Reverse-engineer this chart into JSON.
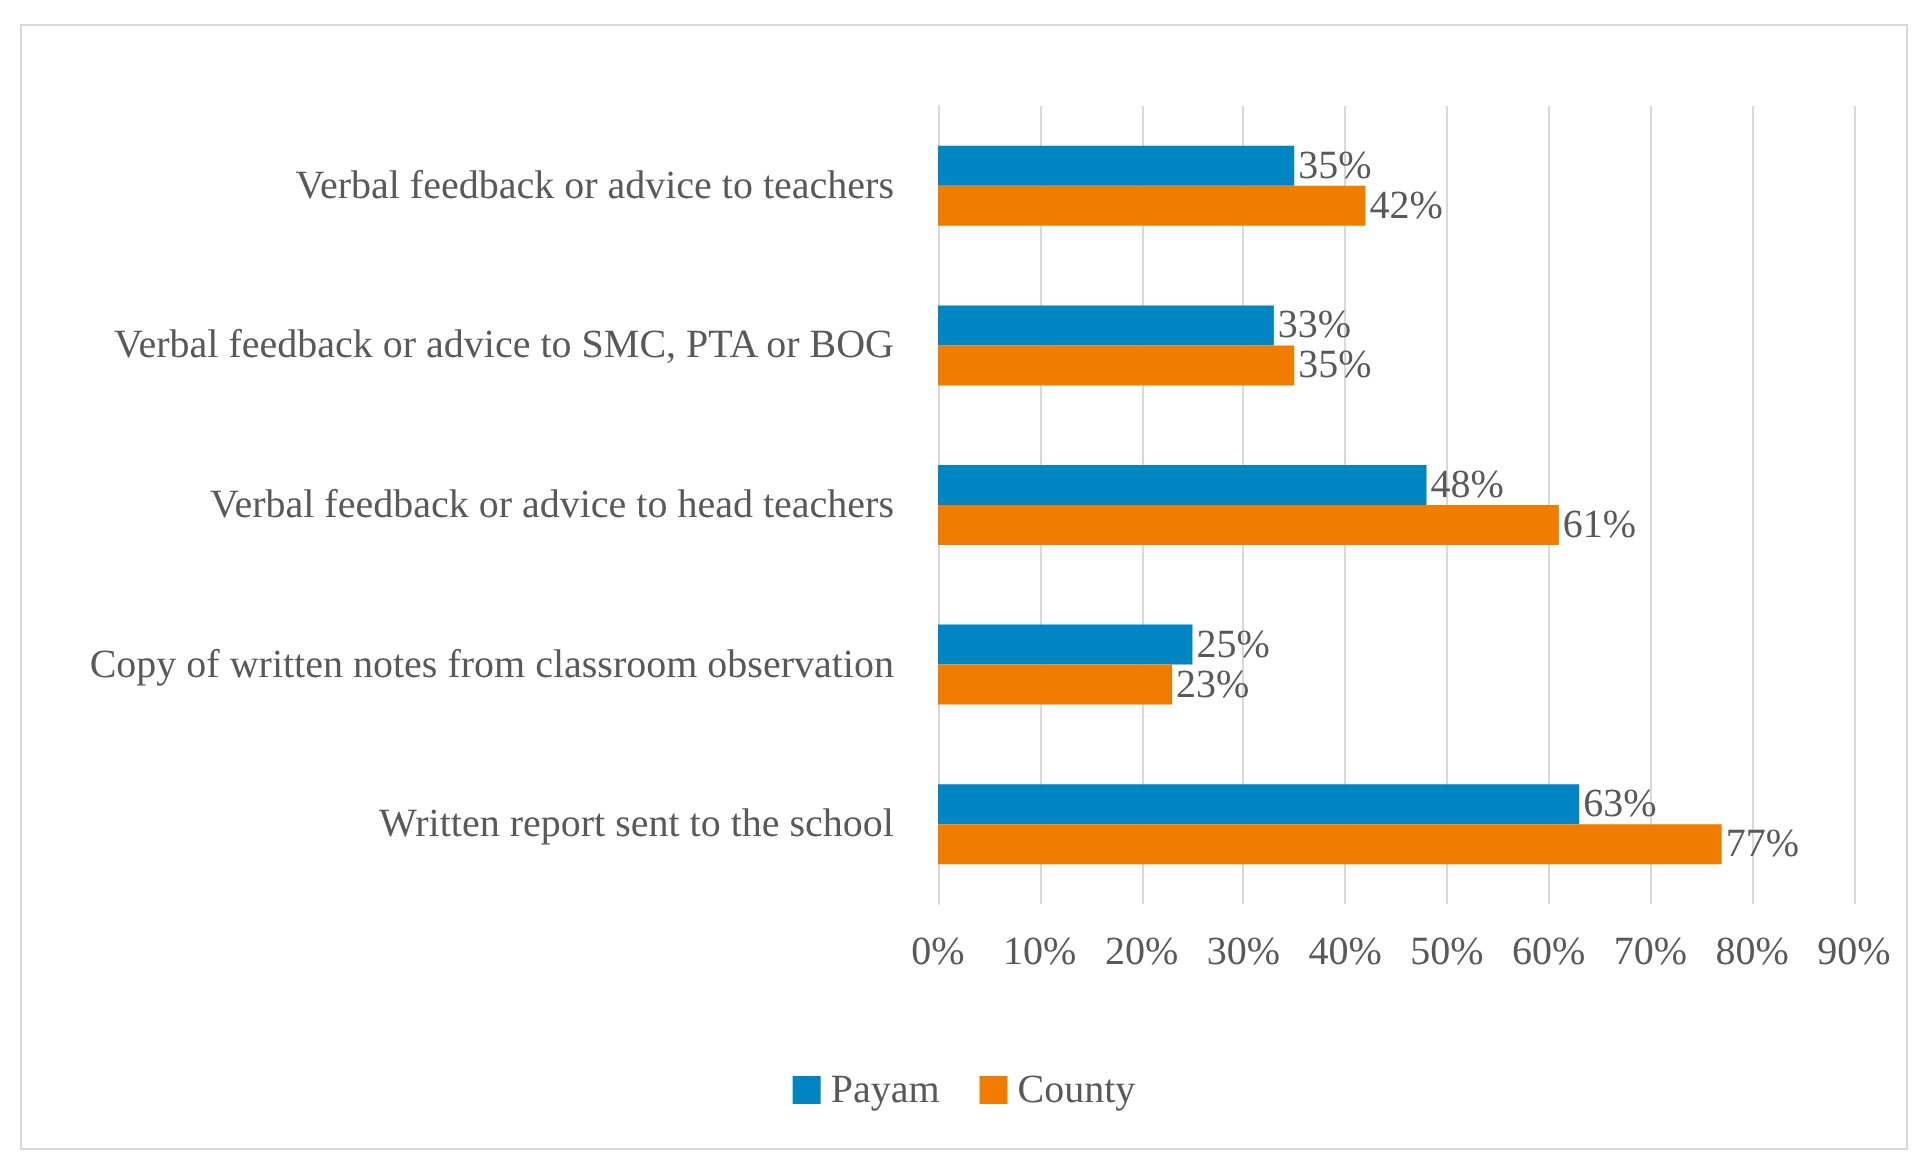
{
  "chart_data": {
    "type": "bar",
    "orientation": "horizontal",
    "categories": [
      "Verbal feedback or advice to teachers",
      "Verbal feedback or advice to SMC, PTA or BOG",
      "Verbal feedback or advice to head teachers",
      "Copy of written notes from classroom observation",
      "Written report sent to the school"
    ],
    "series": [
      {
        "name": "Payam",
        "color": "#0085c3",
        "values": [
          35,
          33,
          48,
          25,
          63
        ],
        "value_labels": [
          "35%",
          "33%",
          "48%",
          "25%",
          "63%"
        ]
      },
      {
        "name": "County",
        "color": "#f07c00",
        "values": [
          42,
          35,
          61,
          23,
          77
        ],
        "value_labels": [
          "42%",
          "35%",
          "61%",
          "23%",
          "77%"
        ]
      }
    ],
    "xlim": [
      0,
      90
    ],
    "xticks": [
      {
        "value": 0,
        "label": "0%"
      },
      {
        "value": 10,
        "label": "10%"
      },
      {
        "value": 20,
        "label": "20%"
      },
      {
        "value": 30,
        "label": "30%"
      },
      {
        "value": 40,
        "label": "40%"
      },
      {
        "value": 50,
        "label": "50%"
      },
      {
        "value": 60,
        "label": "60%"
      },
      {
        "value": 70,
        "label": "70%"
      },
      {
        "value": 80,
        "label": "80%"
      },
      {
        "value": 90,
        "label": "90%"
      }
    ],
    "grid": "x",
    "legend": "bottom"
  }
}
